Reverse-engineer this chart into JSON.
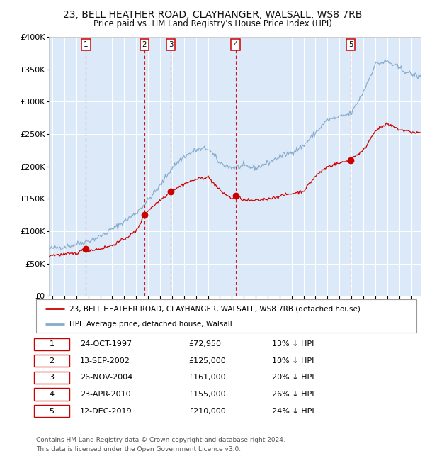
{
  "title1": "23, BELL HEATHER ROAD, CLAYHANGER, WALSALL, WS8 7RB",
  "title2": "Price paid vs. HM Land Registry's House Price Index (HPI)",
  "sale_dates": [
    1997.81,
    2002.7,
    2004.9,
    2010.31,
    2019.95
  ],
  "sale_prices": [
    72950,
    125000,
    161000,
    155000,
    210000
  ],
  "sale_labels": [
    "1",
    "2",
    "3",
    "4",
    "5"
  ],
  "legend_red": "23, BELL HEATHER ROAD, CLAYHANGER, WALSALL, WS8 7RB (detached house)",
  "legend_blue": "HPI: Average price, detached house, Walsall",
  "table_rows": [
    [
      "1",
      "24-OCT-1997",
      "£72,950",
      "13% ↓ HPI"
    ],
    [
      "2",
      "13-SEP-2002",
      "£125,000",
      "10% ↓ HPI"
    ],
    [
      "3",
      "26-NOV-2004",
      "£161,000",
      "20% ↓ HPI"
    ],
    [
      "4",
      "23-APR-2010",
      "£155,000",
      "26% ↓ HPI"
    ],
    [
      "5",
      "12-DEC-2019",
      "£210,000",
      "24% ↓ HPI"
    ]
  ],
  "footnote1": "Contains HM Land Registry data © Crown copyright and database right 2024.",
  "footnote2": "This data is licensed under the Open Government Licence v3.0.",
  "bg_color": "#dce9f8",
  "red_color": "#cc0000",
  "blue_color": "#88aacc",
  "grid_color": "#ffffff",
  "vline_color": "#cc0000",
  "ylim": [
    0,
    400000
  ],
  "yticks": [
    0,
    50000,
    100000,
    150000,
    200000,
    250000,
    300000,
    350000,
    400000
  ],
  "xlim_start": 1994.7,
  "xlim_end": 2025.8
}
